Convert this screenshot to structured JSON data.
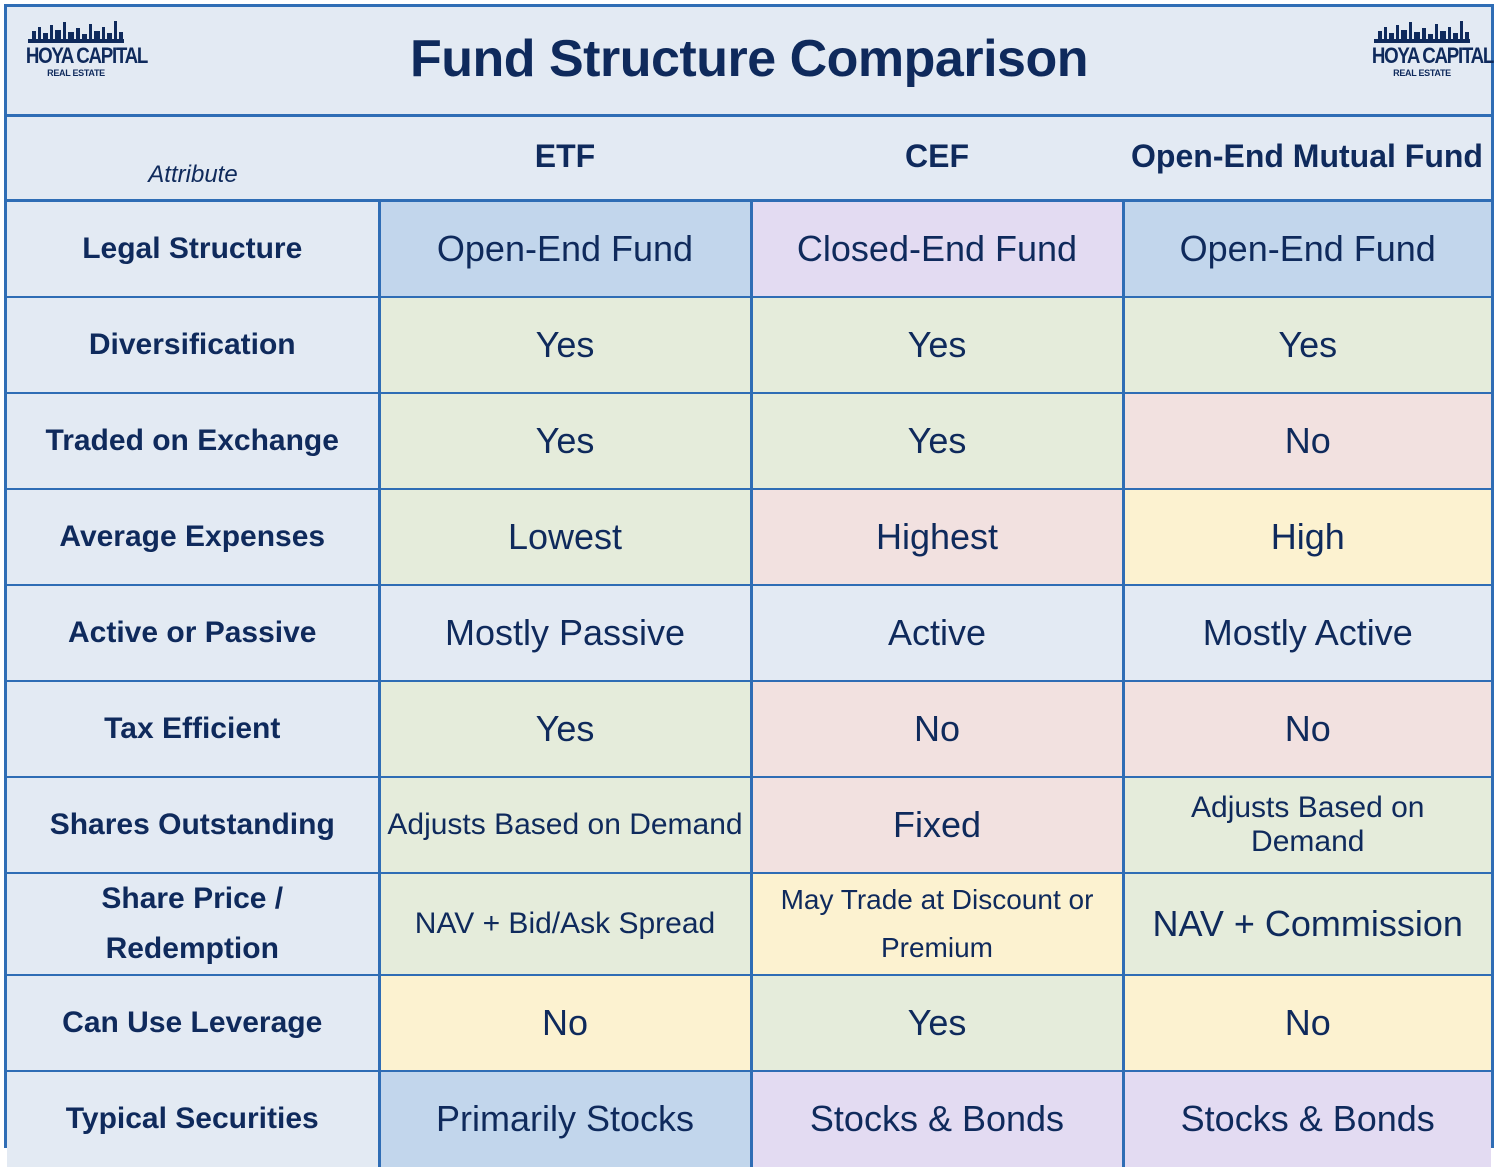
{
  "title": "Fund Structure Comparison",
  "logo": {
    "brand": "HOYA CAPITAL",
    "sub": "REAL ESTATE"
  },
  "colors": {
    "border": "#2f6db5",
    "text": "#0f2a5c",
    "background": "#e3eaf3",
    "blue": "#c2d6ec",
    "purple": "#e3dbf2",
    "green": "#e5ecdb",
    "pink": "#f2e1e0",
    "yellow": "#fcf2d0"
  },
  "columns": [
    "Attribute",
    "ETF",
    "CEF",
    "Open-End Mutual Fund"
  ],
  "rows": [
    {
      "attribute": "Legal Structure",
      "etf": "Open-End Fund",
      "cef": "Closed-End Fund",
      "mutual": "Open-End Fund",
      "colors": [
        "blue",
        "purple",
        "blue"
      ]
    },
    {
      "attribute": "Diversification",
      "etf": "Yes",
      "cef": "Yes",
      "mutual": "Yes",
      "colors": [
        "green",
        "green",
        "green"
      ]
    },
    {
      "attribute": "Traded on Exchange",
      "etf": "Yes",
      "cef": "Yes",
      "mutual": "No",
      "colors": [
        "green",
        "green",
        "pink"
      ]
    },
    {
      "attribute": "Average Expenses",
      "etf": "Lowest",
      "cef": "Highest",
      "mutual": "High",
      "colors": [
        "green",
        "pink",
        "yellow"
      ]
    },
    {
      "attribute": "Active or Passive",
      "etf": "Mostly Passive",
      "cef": "Active",
      "mutual": "Mostly Active",
      "colors": [
        "gray",
        "gray",
        "gray"
      ]
    },
    {
      "attribute": "Tax Efficient",
      "etf": "Yes",
      "cef": "No",
      "mutual": "No",
      "colors": [
        "green",
        "pink",
        "pink"
      ]
    },
    {
      "attribute": "Shares Outstanding",
      "etf": "Adjusts Based on Demand",
      "cef": "Fixed",
      "mutual": "Adjusts Based on Demand",
      "colors": [
        "green",
        "pink",
        "green"
      ]
    },
    {
      "attribute": "Share Price / Redemption",
      "etf": "NAV + Bid/Ask Spread",
      "cef": "May Trade at Discount or Premium",
      "mutual": "NAV + Commission",
      "colors": [
        "green",
        "yellow",
        "green"
      ]
    },
    {
      "attribute": "Can Use Leverage",
      "etf": "No",
      "cef": "Yes",
      "mutual": "No",
      "colors": [
        "yellow",
        "green",
        "yellow"
      ]
    },
    {
      "attribute": "Typical Securities",
      "etf": "Primarily Stocks",
      "cef": "Stocks & Bonds",
      "mutual": "Stocks & Bonds",
      "colors": [
        "blue",
        "purple",
        "purple"
      ]
    }
  ]
}
